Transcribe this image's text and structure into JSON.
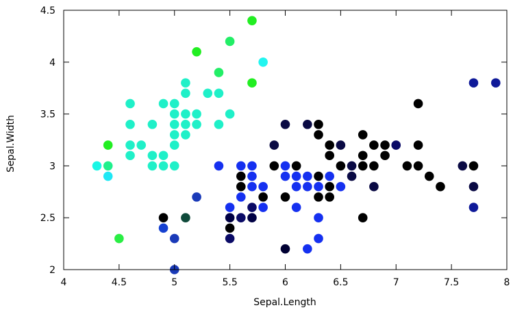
{
  "chart_data": {
    "type": "scatter",
    "title": "",
    "xlabel": "Sepal.Length",
    "ylabel": "Sepal.Width",
    "xlim": [
      4,
      8
    ],
    "ylim": [
      2,
      4.5
    ],
    "xticks": [
      "4",
      "4.5",
      "5",
      "5.5",
      "6",
      "6.5",
      "7",
      "7.5",
      "8"
    ],
    "yticks": [
      "2",
      "2.5",
      "3",
      "3.5",
      "4",
      "4.5"
    ],
    "grid": false,
    "legend": "none",
    "points": [
      {
        "x": 4.3,
        "y": 3.0,
        "color": "#19f7e6"
      },
      {
        "x": 4.4,
        "y": 3.2,
        "color": "#22ee22"
      },
      {
        "x": 4.4,
        "y": 3.0,
        "color": "#1ef08c"
      },
      {
        "x": 4.4,
        "y": 2.9,
        "color": "#1ee8f5"
      },
      {
        "x": 4.5,
        "y": 2.3,
        "color": "#2aee44"
      },
      {
        "x": 4.6,
        "y": 3.6,
        "color": "#1ff0c8"
      },
      {
        "x": 4.6,
        "y": 3.4,
        "color": "#1ff0c8"
      },
      {
        "x": 4.6,
        "y": 3.2,
        "color": "#1ff0c8"
      },
      {
        "x": 4.6,
        "y": 3.1,
        "color": "#1ff0c8"
      },
      {
        "x": 4.7,
        "y": 3.2,
        "color": "#1ff0c8"
      },
      {
        "x": 4.8,
        "y": 3.4,
        "color": "#1ff0c8"
      },
      {
        "x": 4.8,
        "y": 3.1,
        "color": "#1ff0c8"
      },
      {
        "x": 4.8,
        "y": 3.0,
        "color": "#1ff0c8"
      },
      {
        "x": 4.9,
        "y": 3.6,
        "color": "#1ff0c8"
      },
      {
        "x": 4.9,
        "y": 3.1,
        "color": "#1ff0c8"
      },
      {
        "x": 4.9,
        "y": 3.0,
        "color": "#1ff0c8"
      },
      {
        "x": 4.9,
        "y": 2.5,
        "color": "#000000"
      },
      {
        "x": 4.9,
        "y": 2.4,
        "color": "#1540d0"
      },
      {
        "x": 5.0,
        "y": 3.6,
        "color": "#1ff0c8"
      },
      {
        "x": 5.0,
        "y": 3.5,
        "color": "#1ff0c8"
      },
      {
        "x": 5.0,
        "y": 3.4,
        "color": "#1ff0c8"
      },
      {
        "x": 5.0,
        "y": 3.3,
        "color": "#1ff0c8"
      },
      {
        "x": 5.0,
        "y": 3.2,
        "color": "#1ff0c8"
      },
      {
        "x": 5.0,
        "y": 3.0,
        "color": "#1ff0c8"
      },
      {
        "x": 5.0,
        "y": 2.3,
        "color": "#1a3ab8"
      },
      {
        "x": 5.0,
        "y": 2.0,
        "color": "#1a3ab8"
      },
      {
        "x": 5.1,
        "y": 3.8,
        "color": "#1ff0c8"
      },
      {
        "x": 5.1,
        "y": 3.7,
        "color": "#1ff0c8"
      },
      {
        "x": 5.1,
        "y": 3.5,
        "color": "#1ff0c8"
      },
      {
        "x": 5.1,
        "y": 3.4,
        "color": "#1ff0c8"
      },
      {
        "x": 5.1,
        "y": 3.3,
        "color": "#1ff0c8"
      },
      {
        "x": 5.1,
        "y": 2.5,
        "color": "#0f4a3a"
      },
      {
        "x": 5.2,
        "y": 4.1,
        "color": "#22ee22"
      },
      {
        "x": 5.2,
        "y": 3.5,
        "color": "#1ff0c8"
      },
      {
        "x": 5.2,
        "y": 3.4,
        "color": "#1ff0c8"
      },
      {
        "x": 5.2,
        "y": 2.7,
        "color": "#1a3ab8"
      },
      {
        "x": 5.3,
        "y": 3.7,
        "color": "#1ff0c8"
      },
      {
        "x": 5.4,
        "y": 3.9,
        "color": "#22ee66"
      },
      {
        "x": 5.4,
        "y": 3.7,
        "color": "#1ff0c8"
      },
      {
        "x": 5.4,
        "y": 3.4,
        "color": "#1ff0c8"
      },
      {
        "x": 5.4,
        "y": 3.0,
        "color": "#1530f0"
      },
      {
        "x": 5.5,
        "y": 4.2,
        "color": "#22ee66"
      },
      {
        "x": 5.5,
        "y": 3.5,
        "color": "#1ff0c8"
      },
      {
        "x": 5.5,
        "y": 2.6,
        "color": "#1530f0"
      },
      {
        "x": 5.5,
        "y": 2.5,
        "color": "#000044"
      },
      {
        "x": 5.5,
        "y": 2.4,
        "color": "#000000"
      },
      {
        "x": 5.5,
        "y": 2.3,
        "color": "#0a0a66"
      },
      {
        "x": 5.6,
        "y": 3.0,
        "color": "#1530f0"
      },
      {
        "x": 5.6,
        "y": 2.9,
        "color": "#000000"
      },
      {
        "x": 5.6,
        "y": 2.8,
        "color": "#000000"
      },
      {
        "x": 5.6,
        "y": 2.7,
        "color": "#1530f0"
      },
      {
        "x": 5.6,
        "y": 2.5,
        "color": "#0a0a66"
      },
      {
        "x": 5.7,
        "y": 4.4,
        "color": "#22ee22"
      },
      {
        "x": 5.7,
        "y": 3.8,
        "color": "#22ee22"
      },
      {
        "x": 5.7,
        "y": 3.0,
        "color": "#1530f0"
      },
      {
        "x": 5.7,
        "y": 2.9,
        "color": "#1530f0"
      },
      {
        "x": 5.7,
        "y": 2.8,
        "color": "#1530f0"
      },
      {
        "x": 5.7,
        "y": 2.6,
        "color": "#0a0a66"
      },
      {
        "x": 5.7,
        "y": 2.5,
        "color": "#000044"
      },
      {
        "x": 5.8,
        "y": 4.0,
        "color": "#22f5f0"
      },
      {
        "x": 5.8,
        "y": 2.8,
        "color": "#1530f0"
      },
      {
        "x": 5.8,
        "y": 2.7,
        "color": "#000000"
      },
      {
        "x": 5.8,
        "y": 2.6,
        "color": "#1530f0"
      },
      {
        "x": 5.9,
        "y": 3.2,
        "color": "#0a0a44"
      },
      {
        "x": 5.9,
        "y": 3.0,
        "color": "#000000"
      },
      {
        "x": 6.0,
        "y": 3.4,
        "color": "#0a0a44"
      },
      {
        "x": 6.0,
        "y": 3.0,
        "color": "#1530f0"
      },
      {
        "x": 6.0,
        "y": 2.9,
        "color": "#1530f0"
      },
      {
        "x": 6.0,
        "y": 2.7,
        "color": "#000000"
      },
      {
        "x": 6.0,
        "y": 2.2,
        "color": "#000033"
      },
      {
        "x": 6.1,
        "y": 3.0,
        "color": "#000000"
      },
      {
        "x": 6.1,
        "y": 2.9,
        "color": "#1530f0"
      },
      {
        "x": 6.1,
        "y": 2.8,
        "color": "#1530f0"
      },
      {
        "x": 6.1,
        "y": 2.6,
        "color": "#1530f0"
      },
      {
        "x": 6.2,
        "y": 3.4,
        "color": "#0a0a44"
      },
      {
        "x": 6.2,
        "y": 2.9,
        "color": "#1530f0"
      },
      {
        "x": 6.2,
        "y": 2.8,
        "color": "#1530f0"
      },
      {
        "x": 6.2,
        "y": 2.2,
        "color": "#1530f0"
      },
      {
        "x": 6.3,
        "y": 3.4,
        "color": "#000000"
      },
      {
        "x": 6.3,
        "y": 3.3,
        "color": "#000000"
      },
      {
        "x": 6.3,
        "y": 2.9,
        "color": "#000000"
      },
      {
        "x": 6.3,
        "y": 2.8,
        "color": "#1530f0"
      },
      {
        "x": 6.3,
        "y": 2.7,
        "color": "#000000"
      },
      {
        "x": 6.3,
        "y": 2.5,
        "color": "#1530f0"
      },
      {
        "x": 6.3,
        "y": 2.3,
        "color": "#1530f0"
      },
      {
        "x": 6.4,
        "y": 3.2,
        "color": "#000000"
      },
      {
        "x": 6.4,
        "y": 3.1,
        "color": "#000000"
      },
      {
        "x": 6.4,
        "y": 2.9,
        "color": "#1530f0"
      },
      {
        "x": 6.4,
        "y": 2.8,
        "color": "#000000"
      },
      {
        "x": 6.4,
        "y": 2.7,
        "color": "#000000"
      },
      {
        "x": 6.5,
        "y": 3.2,
        "color": "#0a0a44"
      },
      {
        "x": 6.5,
        "y": 3.0,
        "color": "#000000"
      },
      {
        "x": 6.5,
        "y": 2.8,
        "color": "#1530f0"
      },
      {
        "x": 6.6,
        "y": 3.0,
        "color": "#0a0a44"
      },
      {
        "x": 6.6,
        "y": 2.9,
        "color": "#0a0a44"
      },
      {
        "x": 6.7,
        "y": 3.3,
        "color": "#000000"
      },
      {
        "x": 6.7,
        "y": 3.1,
        "color": "#000000"
      },
      {
        "x": 6.7,
        "y": 3.0,
        "color": "#000000"
      },
      {
        "x": 6.7,
        "y": 2.5,
        "color": "#000000"
      },
      {
        "x": 6.8,
        "y": 3.2,
        "color": "#000000"
      },
      {
        "x": 6.8,
        "y": 3.0,
        "color": "#000000"
      },
      {
        "x": 6.8,
        "y": 2.8,
        "color": "#0a0a44"
      },
      {
        "x": 6.9,
        "y": 3.2,
        "color": "#000000"
      },
      {
        "x": 6.9,
        "y": 3.1,
        "color": "#000000"
      },
      {
        "x": 7.0,
        "y": 3.2,
        "color": "#0a0a66"
      },
      {
        "x": 7.1,
        "y": 3.0,
        "color": "#000000"
      },
      {
        "x": 7.2,
        "y": 3.6,
        "color": "#000000"
      },
      {
        "x": 7.2,
        "y": 3.2,
        "color": "#000000"
      },
      {
        "x": 7.2,
        "y": 3.0,
        "color": "#000000"
      },
      {
        "x": 7.3,
        "y": 2.9,
        "color": "#000000"
      },
      {
        "x": 7.4,
        "y": 2.8,
        "color": "#000000"
      },
      {
        "x": 7.6,
        "y": 3.0,
        "color": "#0a0a44"
      },
      {
        "x": 7.7,
        "y": 3.8,
        "color": "#0f1a99"
      },
      {
        "x": 7.7,
        "y": 3.0,
        "color": "#000000"
      },
      {
        "x": 7.7,
        "y": 2.8,
        "color": "#0a0a44"
      },
      {
        "x": 7.7,
        "y": 2.6,
        "color": "#0f1a99"
      },
      {
        "x": 7.9,
        "y": 3.8,
        "color": "#0f1a99"
      }
    ]
  }
}
